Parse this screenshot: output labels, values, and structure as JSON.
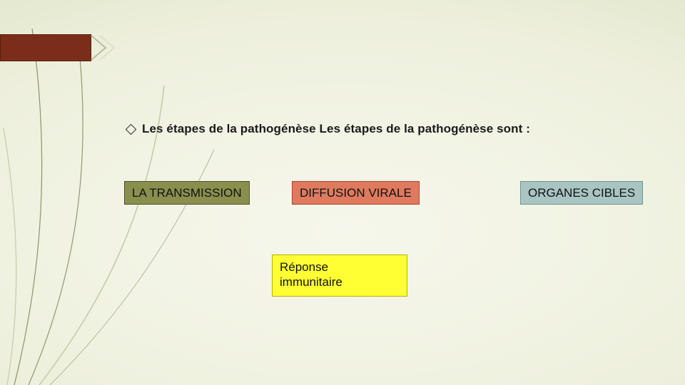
{
  "slide": {
    "background": {
      "type": "radial-gradient",
      "colors": [
        "#f6f7ec",
        "#eef0dd",
        "#dde2c4",
        "#c9d1a7"
      ]
    },
    "decor": {
      "header_bar_color": "#7a2e1a",
      "header_bar_border": "#5a1f10",
      "chevron_stroke": "#b9bca0",
      "curve_stroke": "#7f8a5a",
      "curve_stroke_light": "#bfc8a6"
    },
    "bullet": {
      "text": "Les étapes de la pathogénèse Les étapes de la pathogénèse sont :",
      "fontsize": 17,
      "fontweight": 700,
      "color": "#1a1a1a",
      "marker": "diamond-outline"
    },
    "boxes": {
      "transmission": {
        "label": "LA TRANSMISSION",
        "bg": "#8a8f4e",
        "border": "#4e5228",
        "font_color": "#111111",
        "fontsize": 17
      },
      "diffusion": {
        "label": "DIFFUSION VIRALE",
        "bg": "#e07a5f",
        "border": "#a7452c",
        "font_color": "#111111",
        "fontsize": 17
      },
      "organes": {
        "label": "ORGANES CIBLES",
        "bg": "#a9c5c3",
        "border": "#6f9290",
        "font_color": "#111111",
        "fontsize": 17
      },
      "reponse": {
        "label": "Réponse\nimmunitaire",
        "bg": "#ffff33",
        "border": "#b3b300",
        "font_color": "#111111",
        "fontsize": 17
      }
    }
  }
}
